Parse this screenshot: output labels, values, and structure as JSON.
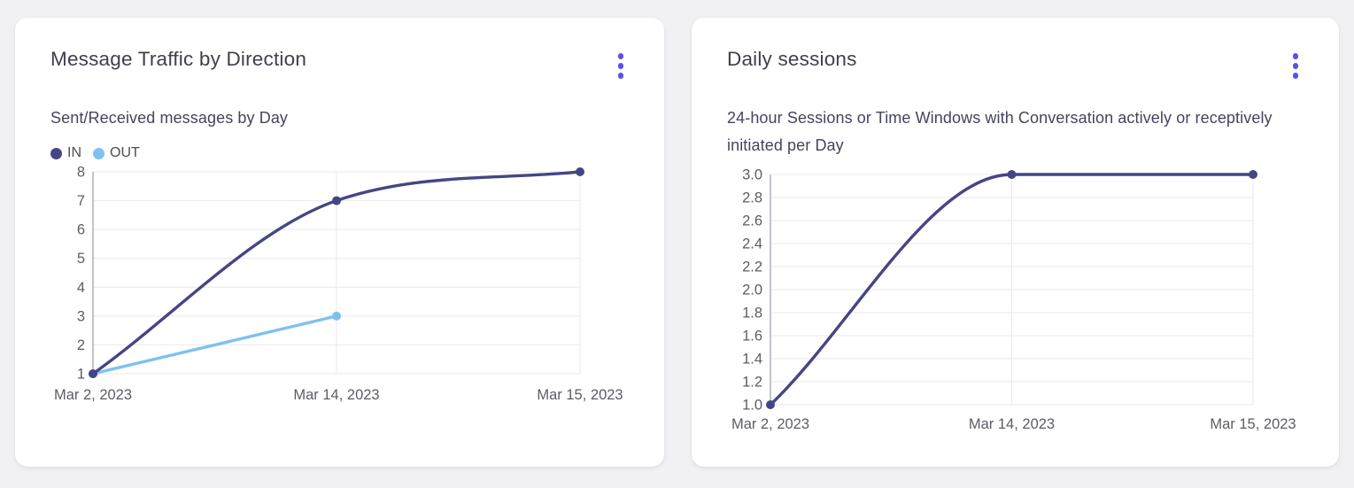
{
  "colors": {
    "page_bg": "#f1f1f4",
    "card_bg": "#ffffff",
    "title": "#40404d",
    "subtitle": "#45455a",
    "tick_text": "#5c5c66",
    "axis_line": "#a3a3af",
    "grid_line": "#e9e9ee",
    "menu_icon": "#5a50ee",
    "series_dark": "#464584",
    "series_light": "#7ec1f0"
  },
  "cards": [
    {
      "title": "Message Traffic by Direction",
      "subtitle": "Sent/Received messages by Day",
      "menu_icon": "kebab-menu-icon",
      "chart_data": {
        "type": "line",
        "categories": [
          "Mar 2, 2023",
          "Mar 14, 2023",
          "Mar 15, 2023"
        ],
        "series": [
          {
            "name": "IN",
            "color": "#464584",
            "values": [
              1,
              7,
              8
            ]
          },
          {
            "name": "OUT",
            "color": "#7ec1f0",
            "values": [
              1,
              3,
              null
            ]
          }
        ],
        "ylim": [
          1,
          8
        ],
        "ytick_labels": [
          "1",
          "2",
          "3",
          "4",
          "5",
          "6",
          "7",
          "8"
        ],
        "legend": true,
        "legend_position": "top-left",
        "grid": true,
        "curve": "monotone"
      }
    },
    {
      "title": "Daily sessions",
      "subtitle": "24-hour Sessions or Time Windows with Conversation actively or receptively initiated per Day",
      "menu_icon": "kebab-menu-icon",
      "chart_data": {
        "type": "line",
        "categories": [
          "Mar 2, 2023",
          "Mar 14, 2023",
          "Mar 15, 2023"
        ],
        "series": [
          {
            "color": "#464584",
            "values": [
              1.0,
              3.0,
              3.0
            ]
          }
        ],
        "ylim": [
          1.0,
          3.0
        ],
        "ytick_labels": [
          "1.0",
          "1.2",
          "1.4",
          "1.6",
          "1.8",
          "2.0",
          "2.2",
          "2.4",
          "2.6",
          "2.8",
          "3.0"
        ],
        "legend": false,
        "grid": true,
        "curve": "monotone"
      }
    }
  ]
}
